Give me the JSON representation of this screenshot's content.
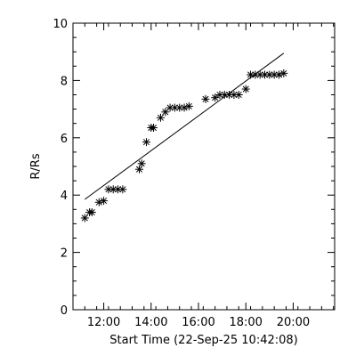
{
  "chart_data": {
    "type": "scatter",
    "title": "",
    "xlabel": "Start Time (22-Sep-25 10:42:08)",
    "ylabel": "R/Rs",
    "x_unit": "time of day (HH:MM)",
    "xlim": [
      "10:42",
      "21:45"
    ],
    "ylim": [
      0,
      10
    ],
    "x_ticks": [
      "12:00",
      "14:00",
      "16:00",
      "18:00",
      "20:00"
    ],
    "y_ticks": [
      "0",
      "2",
      "4",
      "6",
      "8",
      "10"
    ],
    "grid": false,
    "marker": "asterisk",
    "color": "#000000",
    "points": [
      {
        "x": "11:12",
        "y": 3.2
      },
      {
        "x": "11:24",
        "y": 3.4
      },
      {
        "x": "11:30",
        "y": 3.4
      },
      {
        "x": "11:48",
        "y": 3.75
      },
      {
        "x": "12:00",
        "y": 3.8
      },
      {
        "x": "12:12",
        "y": 4.2
      },
      {
        "x": "12:24",
        "y": 4.2
      },
      {
        "x": "12:36",
        "y": 4.2
      },
      {
        "x": "12:48",
        "y": 4.2
      },
      {
        "x": "13:30",
        "y": 4.9
      },
      {
        "x": "13:36",
        "y": 5.1
      },
      {
        "x": "13:48",
        "y": 5.85
      },
      {
        "x": "14:00",
        "y": 6.35
      },
      {
        "x": "14:06",
        "y": 6.35
      },
      {
        "x": "14:24",
        "y": 6.7
      },
      {
        "x": "14:36",
        "y": 6.9
      },
      {
        "x": "14:48",
        "y": 7.05
      },
      {
        "x": "15:00",
        "y": 7.05
      },
      {
        "x": "15:12",
        "y": 7.05
      },
      {
        "x": "15:24",
        "y": 7.05
      },
      {
        "x": "15:36",
        "y": 7.1
      },
      {
        "x": "16:18",
        "y": 7.35
      },
      {
        "x": "16:42",
        "y": 7.4
      },
      {
        "x": "16:54",
        "y": 7.5
      },
      {
        "x": "17:06",
        "y": 7.5
      },
      {
        "x": "17:18",
        "y": 7.5
      },
      {
        "x": "17:30",
        "y": 7.5
      },
      {
        "x": "17:42",
        "y": 7.5
      },
      {
        "x": "18:00",
        "y": 7.7
      },
      {
        "x": "18:12",
        "y": 8.2
      },
      {
        "x": "18:24",
        "y": 8.2
      },
      {
        "x": "18:36",
        "y": 8.2
      },
      {
        "x": "18:48",
        "y": 8.2
      },
      {
        "x": "19:00",
        "y": 8.2
      },
      {
        "x": "19:12",
        "y": 8.2
      },
      {
        "x": "19:24",
        "y": 8.2
      },
      {
        "x": "19:36",
        "y": 8.25
      }
    ],
    "fit_line": {
      "start": {
        "x": "11:12",
        "y": 3.85
      },
      "end": {
        "x": "19:36",
        "y": 8.95
      }
    }
  }
}
